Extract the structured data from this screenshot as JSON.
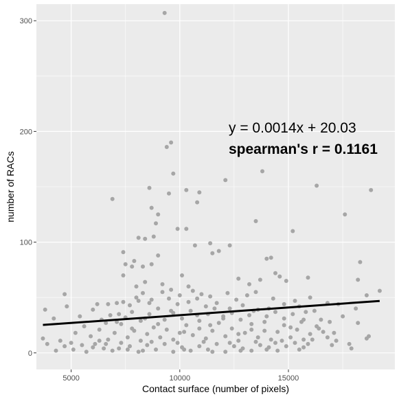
{
  "chart_data": {
    "type": "scatter",
    "xlabel": "Contact surface (number of pixels)",
    "ylabel": "number of RACs",
    "xlim": [
      3400,
      19900
    ],
    "ylim": [
      -15,
      315
    ],
    "x_ticks": [
      5000,
      10000,
      15000
    ],
    "x_tick_labels": [
      "5000",
      "10000",
      "15000"
    ],
    "y_ticks": [
      0,
      100,
      200,
      300
    ],
    "y_tick_labels": [
      "0",
      "100",
      "200",
      "300"
    ],
    "grid": true,
    "colors": {
      "panel": "#ebebeb",
      "grid": "#ffffff",
      "points": "#a6a6a6",
      "line": "#000000"
    },
    "annotations": [
      {
        "text": "y = 0.0014x + 20.03",
        "bold": false
      },
      {
        "text": "spearman's r = 0.1161",
        "bold": true
      }
    ],
    "regression": {
      "slope": 0.0014,
      "intercept": 20.03,
      "x_range": [
        3700,
        19200
      ]
    },
    "series": [
      {
        "points": [
          [
            9300,
            307
          ],
          [
            9600,
            190
          ],
          [
            9400,
            186
          ],
          [
            17900,
            185
          ],
          [
            9700,
            162
          ],
          [
            12100,
            156
          ],
          [
            13800,
            164
          ],
          [
            16300,
            151
          ],
          [
            8600,
            149
          ],
          [
            10300,
            147
          ],
          [
            18800,
            147
          ],
          [
            9500,
            144
          ],
          [
            10900,
            145
          ],
          [
            6900,
            139
          ],
          [
            10800,
            136
          ],
          [
            8700,
            131
          ],
          [
            9000,
            125
          ],
          [
            8900,
            117
          ],
          [
            17600,
            125
          ],
          [
            8100,
            104
          ],
          [
            8400,
            103
          ],
          [
            8800,
            105
          ],
          [
            9900,
            112
          ],
          [
            10300,
            112
          ],
          [
            11800,
            92
          ],
          [
            11400,
            99
          ],
          [
            11500,
            90
          ],
          [
            12300,
            97
          ],
          [
            10700,
            97
          ],
          [
            13500,
            119
          ],
          [
            15200,
            110
          ],
          [
            7400,
            91
          ],
          [
            7500,
            80
          ],
          [
            7800,
            78
          ],
          [
            7900,
            83
          ],
          [
            8300,
            78
          ],
          [
            8700,
            80
          ],
          [
            9000,
            88
          ],
          [
            14000,
            85
          ],
          [
            14200,
            86
          ],
          [
            14400,
            72
          ],
          [
            14600,
            69
          ],
          [
            14900,
            65
          ],
          [
            15900,
            68
          ],
          [
            18300,
            82
          ],
          [
            18200,
            66
          ],
          [
            12700,
            67
          ],
          [
            13200,
            62
          ],
          [
            13700,
            66
          ],
          [
            10100,
            70
          ],
          [
            10400,
            60
          ],
          [
            8000,
            60
          ],
          [
            8400,
            64
          ],
          [
            9200,
            62
          ],
          [
            7400,
            70
          ],
          [
            4700,
            53
          ],
          [
            6200,
            44
          ],
          [
            6700,
            44
          ],
          [
            7100,
            45
          ],
          [
            7400,
            46
          ],
          [
            7700,
            43
          ],
          [
            8100,
            47
          ],
          [
            8700,
            48
          ],
          [
            9500,
            49
          ],
          [
            9900,
            44
          ],
          [
            10400,
            46
          ],
          [
            10800,
            49
          ],
          [
            11200,
            42
          ],
          [
            11700,
            45
          ],
          [
            12300,
            40
          ],
          [
            12900,
            43
          ],
          [
            13400,
            38
          ],
          [
            14100,
            40
          ],
          [
            14800,
            44
          ],
          [
            15500,
            42
          ],
          [
            16000,
            50
          ],
          [
            16800,
            45
          ],
          [
            17300,
            44
          ],
          [
            18100,
            40
          ],
          [
            18600,
            52
          ],
          [
            19200,
            56
          ],
          [
            18700,
            15
          ],
          [
            17800,
            8
          ],
          [
            17100,
            18
          ],
          [
            16500,
            30
          ],
          [
            15700,
            12
          ],
          [
            15100,
            23
          ],
          [
            14400,
            9
          ],
          [
            13900,
            28
          ],
          [
            13300,
            21
          ],
          [
            12700,
            17
          ],
          [
            12000,
            31
          ],
          [
            11400,
            25
          ],
          [
            10800,
            34
          ],
          [
            10200,
            19
          ],
          [
            9600,
            38
          ],
          [
            9000,
            26
          ],
          [
            8400,
            31
          ],
          [
            7800,
            22
          ],
          [
            7200,
            35
          ],
          [
            6600,
            27
          ],
          [
            6000,
            39
          ],
          [
            5400,
            33
          ],
          [
            4800,
            42
          ],
          [
            4200,
            31
          ],
          [
            3800,
            39
          ],
          [
            3700,
            13
          ],
          [
            3900,
            8
          ],
          [
            4300,
            2
          ],
          [
            4700,
            6
          ],
          [
            5100,
            3
          ],
          [
            5700,
            1
          ],
          [
            6100,
            8
          ],
          [
            6500,
            4
          ],
          [
            6900,
            2
          ],
          [
            7300,
            9
          ],
          [
            7700,
            6
          ],
          [
            8100,
            1
          ],
          [
            8500,
            7
          ],
          [
            8900,
            3
          ],
          [
            9300,
            8
          ],
          [
            9700,
            1
          ],
          [
            10100,
            5
          ],
          [
            10500,
            2
          ],
          [
            10900,
            6
          ],
          [
            11300,
            3
          ],
          [
            11700,
            8
          ],
          [
            12100,
            1
          ],
          [
            12500,
            6
          ],
          [
            12900,
            4
          ],
          [
            13300,
            2
          ],
          [
            13700,
            7
          ],
          [
            14100,
            5
          ],
          [
            14500,
            2
          ],
          [
            14900,
            6
          ],
          [
            15300,
            9
          ],
          [
            15700,
            5
          ],
          [
            16100,
            12
          ],
          [
            16600,
            19
          ],
          [
            17200,
            11
          ],
          [
            17900,
            4
          ],
          [
            18600,
            13
          ],
          [
            5200,
            18
          ],
          [
            5600,
            24
          ],
          [
            5900,
            15
          ],
          [
            6300,
            21
          ],
          [
            6700,
            12
          ],
          [
            7000,
            18
          ],
          [
            7300,
            26
          ],
          [
            7600,
            14
          ],
          [
            7900,
            20
          ],
          [
            8200,
            11
          ],
          [
            8500,
            17
          ],
          [
            8800,
            23
          ],
          [
            9100,
            14
          ],
          [
            9400,
            21
          ],
          [
            9700,
            12
          ],
          [
            10000,
            18
          ],
          [
            10300,
            25
          ],
          [
            10600,
            16
          ],
          [
            10900,
            22
          ],
          [
            11200,
            13
          ],
          [
            11500,
            20
          ],
          [
            11800,
            27
          ],
          [
            12100,
            15
          ],
          [
            12400,
            22
          ],
          [
            12700,
            11
          ],
          [
            13000,
            18
          ],
          [
            13300,
            26
          ],
          [
            13600,
            14
          ],
          [
            13900,
            20
          ],
          [
            14200,
            12
          ],
          [
            14500,
            19
          ],
          [
            14800,
            25
          ],
          [
            15100,
            14
          ],
          [
            15400,
            21
          ],
          [
            15700,
            30
          ],
          [
            16000,
            17
          ],
          [
            16300,
            24
          ],
          [
            6400,
            30
          ],
          [
            6800,
            34
          ],
          [
            7100,
            28
          ],
          [
            7500,
            32
          ],
          [
            7800,
            37
          ],
          [
            8200,
            29
          ],
          [
            8600,
            35
          ],
          [
            9000,
            40
          ],
          [
            9300,
            30
          ],
          [
            9700,
            36
          ],
          [
            10100,
            31
          ],
          [
            10500,
            38
          ],
          [
            10900,
            29
          ],
          [
            11300,
            35
          ],
          [
            11600,
            40
          ],
          [
            12000,
            33
          ],
          [
            12400,
            36
          ],
          [
            12800,
            30
          ],
          [
            13200,
            34
          ],
          [
            13600,
            39
          ],
          [
            14000,
            33
          ],
          [
            14400,
            37
          ],
          [
            14800,
            31
          ],
          [
            15200,
            35
          ],
          [
            15600,
            28
          ],
          [
            16200,
            38
          ],
          [
            8000,
            50
          ],
          [
            8300,
            54
          ],
          [
            8600,
            45
          ],
          [
            9200,
            55
          ],
          [
            9600,
            57
          ],
          [
            10000,
            52
          ],
          [
            10600,
            56
          ],
          [
            11000,
            53
          ],
          [
            11400,
            51
          ],
          [
            12200,
            54
          ],
          [
            12600,
            48
          ],
          [
            13100,
            52
          ],
          [
            13500,
            55
          ],
          [
            14300,
            49
          ],
          [
            15300,
            47
          ],
          [
            15800,
            37
          ],
          [
            16400,
            22
          ],
          [
            16900,
            28
          ],
          [
            17500,
            33
          ],
          [
            18200,
            27
          ],
          [
            6000,
            5
          ],
          [
            6300,
            11
          ],
          [
            6600,
            8
          ],
          [
            7600,
            3
          ],
          [
            8700,
            10
          ],
          [
            9900,
            9
          ],
          [
            11100,
            10
          ],
          [
            12300,
            9
          ],
          [
            13500,
            10
          ],
          [
            14700,
            11
          ],
          [
            15900,
            8
          ],
          [
            17000,
            7
          ],
          [
            4500,
            11
          ],
          [
            5000,
            9
          ],
          [
            5500,
            7
          ],
          [
            7200,
            4
          ],
          [
            8300,
            2
          ],
          [
            10200,
            3
          ],
          [
            11500,
            1
          ],
          [
            12800,
            2
          ],
          [
            14000,
            3
          ],
          [
            15500,
            3
          ],
          [
            16800,
            14
          ]
        ]
      }
    ]
  }
}
